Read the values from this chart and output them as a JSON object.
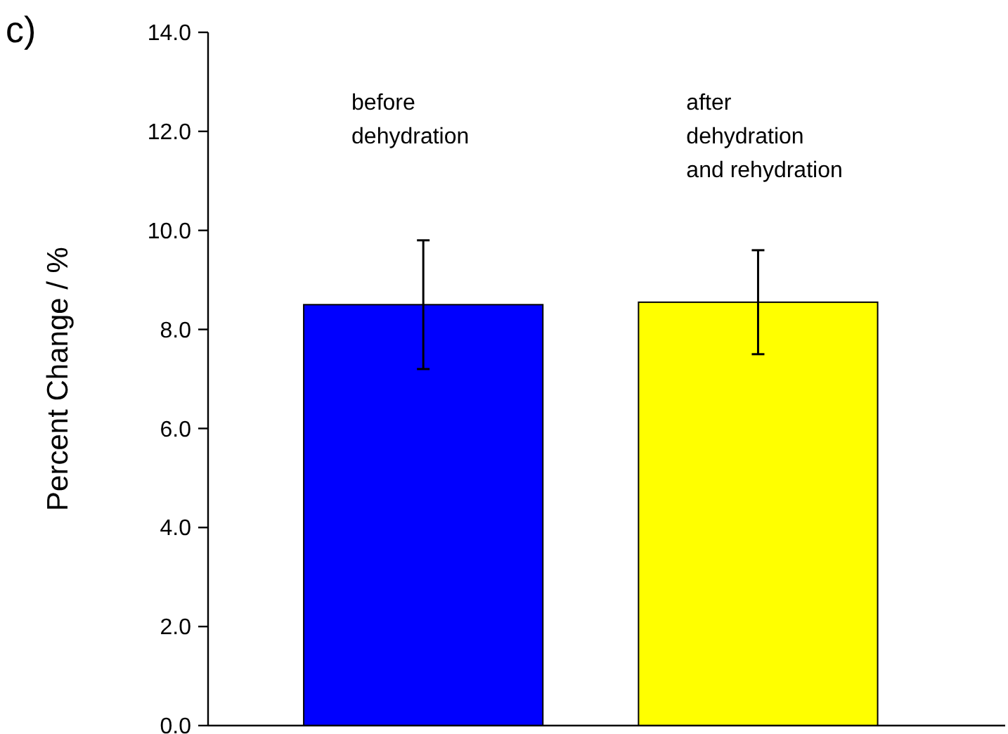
{
  "chart_data": {
    "type": "bar",
    "ylabel": "Percent Change / %",
    "categories": [
      "before\ndehydration",
      "after\ndehydration\nand rehydration"
    ],
    "values": [
      8.5,
      8.55
    ],
    "colors": [
      "#0000ff",
      "#ffff00"
    ],
    "errors": [
      [
        7.2,
        9.8
      ],
      [
        7.5,
        9.6
      ]
    ],
    "ylim": [
      0,
      14
    ],
    "yticks": [
      {
        "value": 0,
        "label": "0.0"
      },
      {
        "value": 2,
        "label": "2.0"
      },
      {
        "value": 4,
        "label": "4.0"
      },
      {
        "value": 6,
        "label": "6.0"
      },
      {
        "value": 8,
        "label": "8.0"
      },
      {
        "value": 10,
        "label": "10.0"
      },
      {
        "value": 12,
        "label": "12.0"
      },
      {
        "value": 14,
        "label": "14.0"
      }
    ],
    "annotations": [
      "c)"
    ],
    "grid": false
  }
}
